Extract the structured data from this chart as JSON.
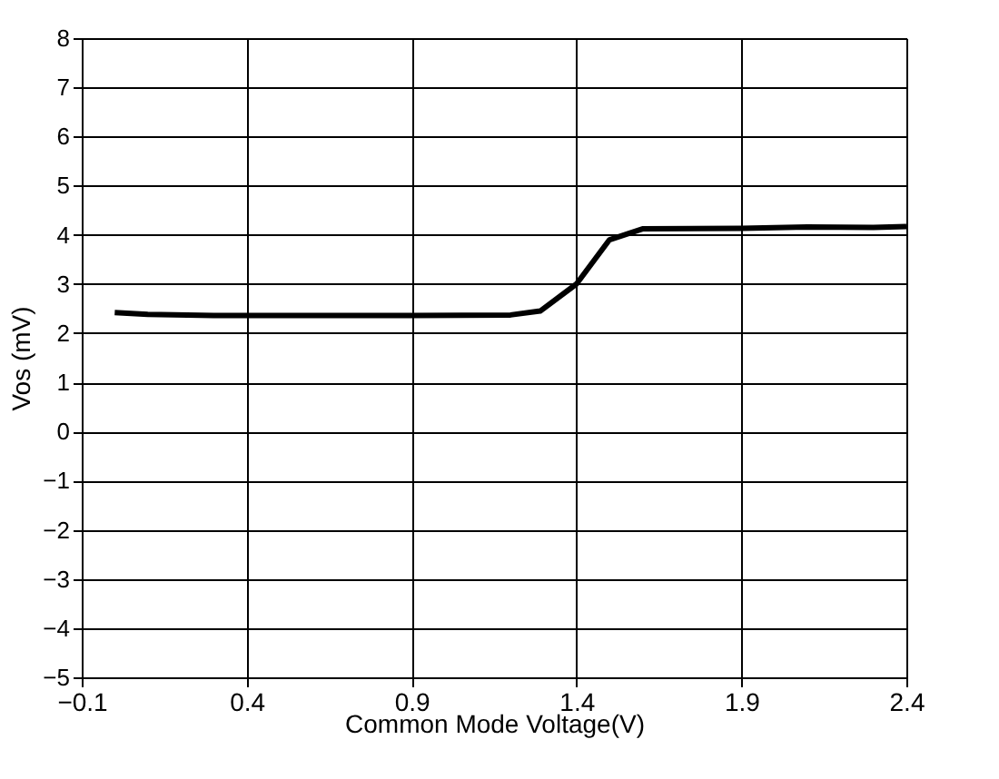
{
  "chart_data": {
    "type": "line",
    "xlabel": "Common Mode Voltage(V)",
    "ylabel": "Vos (mV)",
    "x": [
      0.0,
      0.1,
      0.3,
      0.6,
      0.9,
      1.2,
      1.29,
      1.4,
      1.5,
      1.6,
      1.9,
      2.1,
      2.3,
      2.4
    ],
    "series": [
      {
        "color": "#000000",
        "values": [
          2.42,
          2.38,
          2.36,
          2.36,
          2.36,
          2.37,
          2.45,
          3.0,
          3.9,
          4.12,
          4.13,
          4.16,
          4.15,
          4.17
        ]
      }
    ],
    "xlim": [
      -0.1,
      2.4
    ],
    "xticks": [
      -0.1,
      0.4,
      0.9,
      1.4,
      1.9,
      2.4
    ],
    "ylim": [
      -5,
      8
    ],
    "yticks": [
      -5,
      -4,
      -3,
      -2,
      -1,
      0,
      1,
      2,
      3,
      4,
      5,
      6,
      7,
      8
    ],
    "grid": true,
    "marker": "none",
    "line_style": "solid"
  }
}
